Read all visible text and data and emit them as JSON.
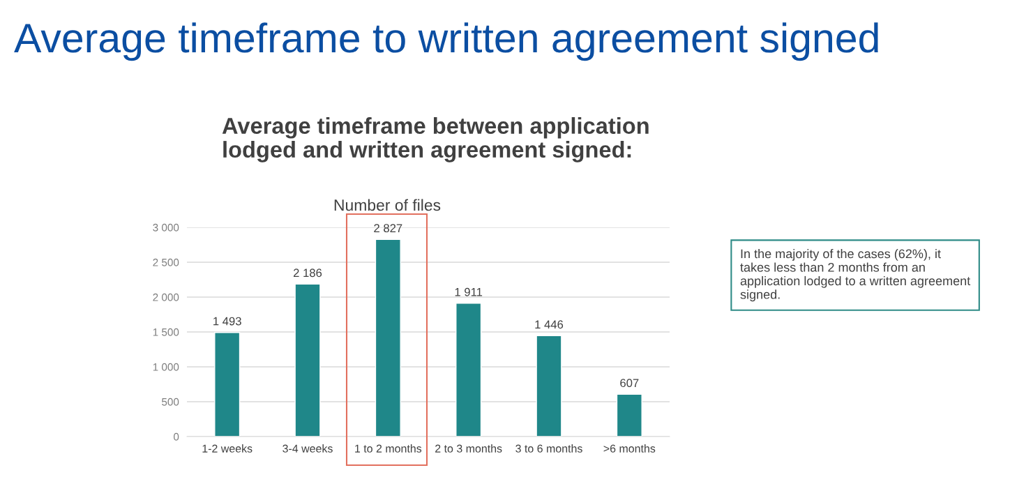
{
  "chart_data": {
    "type": "bar",
    "title": "Average timeframe to written agreement signed",
    "subtitle": "Average timeframe between application\nlodged and written agreement signed:",
    "categories": [
      "1-2 weeks",
      "3-4 weeks",
      "1 to 2 months",
      "2 to 3 months",
      "3 to 6 months",
      ">6 months"
    ],
    "values": [
      1493,
      2186,
      2827,
      1911,
      1446,
      607
    ],
    "value_labels": [
      "1 493",
      "2 186",
      "2 827",
      "1 911",
      "1 446",
      "607"
    ],
    "color": "#1f8789",
    "ylim": [
      0,
      3000
    ],
    "yticks": [
      0,
      500,
      {
        "value": 1000,
        "label": "1 000"
      },
      {
        "value": 1500,
        "label": "1 500"
      },
      {
        "value": 2000,
        "label": "2 000"
      },
      {
        "value": 2500,
        "label": "2 500"
      },
      {
        "value": 3000,
        "label": "3 000"
      }
    ],
    "grid": "y",
    "annotations": [
      "Number of files",
      "In the majority of the cases (62%), it\ntakes less than 2 months from an\napplication lodged to a written agreement\nsigned."
    ]
  }
}
